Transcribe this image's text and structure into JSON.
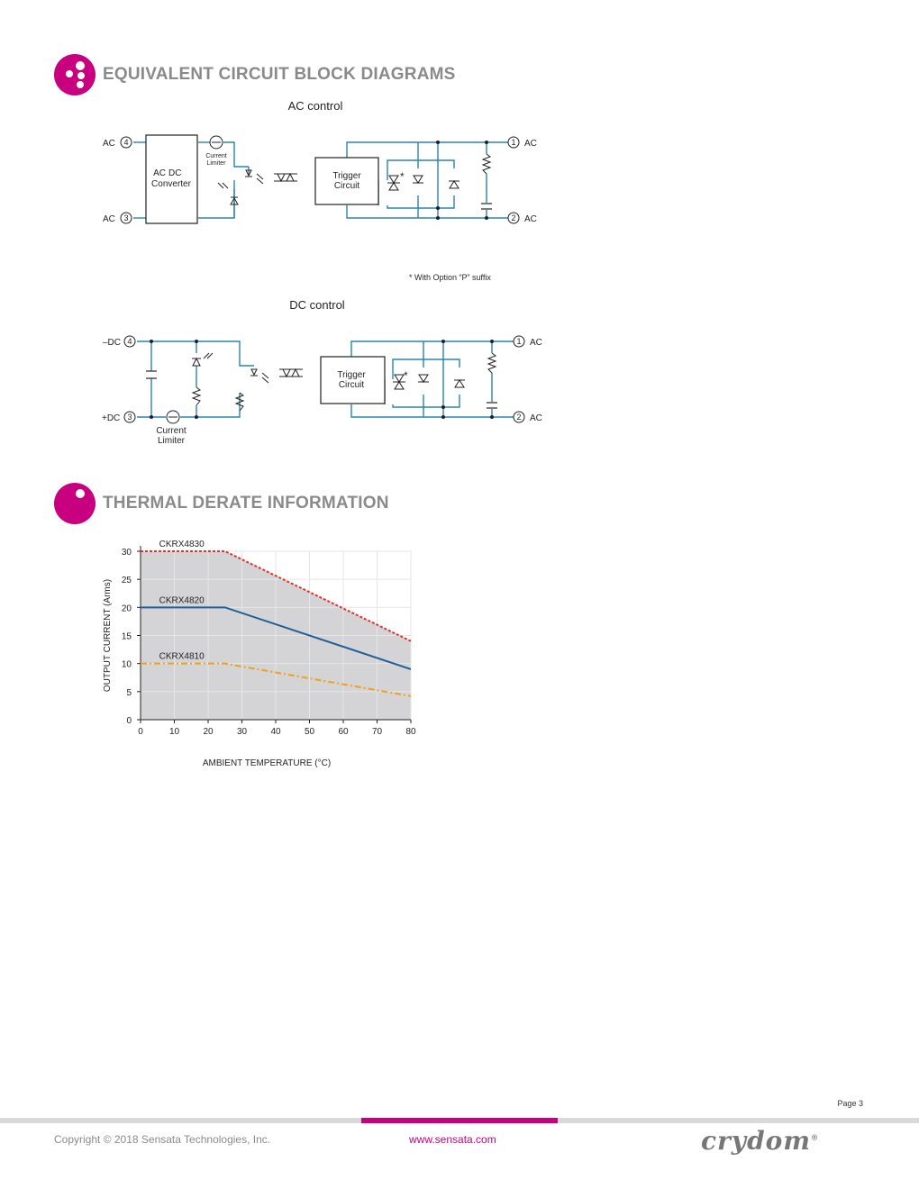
{
  "sections": {
    "circuit_title": "EQUIVALENT CIRCUIT BLOCK DIAGRAMS",
    "thermal_title": "THERMAL DERATE INFORMATION"
  },
  "ac_diagram": {
    "title": "AC control",
    "pin4_label": "AC",
    "pin3_label": "AC",
    "pin1_label": "AC",
    "pin2_label": "AC",
    "pin4": "4",
    "pin3": "3",
    "pin1": "1",
    "pin2": "2",
    "converter_line1": "AC",
    "converter_line2": "DC",
    "converter_line3": "Converter",
    "limiter_line1": "Current",
    "limiter_line2": "Limiter",
    "trigger_line1": "Trigger",
    "trigger_line2": "Circuit",
    "asterisk": "*",
    "footnote": "* With Option “P” suffix"
  },
  "dc_diagram": {
    "title": "DC control",
    "pin4_label": "–DC",
    "pin3_label": "+DC",
    "pin1_label": "AC",
    "pin2_label": "AC",
    "pin4": "4",
    "pin3": "3",
    "pin1": "1",
    "pin2": "2",
    "limiter_line1": "Current",
    "limiter_line2": "Limiter",
    "trigger_line1": "Trigger",
    "trigger_line2": "Circuit",
    "asterisk": "*"
  },
  "chart_data": {
    "type": "line",
    "xlabel": "AMBIENT TEMPERATURE (°C)",
    "ylabel": "OUTPUT CURRENT (Arms)",
    "xlim": [
      0,
      80
    ],
    "ylim": [
      0,
      30
    ],
    "xticks": [
      0,
      10,
      20,
      30,
      40,
      50,
      60,
      70,
      80
    ],
    "yticks": [
      0,
      5,
      10,
      15,
      20,
      25,
      30
    ],
    "grid": true,
    "series": [
      {
        "name": "CKRX4830",
        "color": "#e2302f",
        "dash": "dotted",
        "x": [
          0,
          25,
          80
        ],
        "y": [
          30,
          30,
          14
        ]
      },
      {
        "name": "CKRX4820",
        "color": "#1f5f95",
        "dash": "solid",
        "x": [
          0,
          25,
          80
        ],
        "y": [
          20,
          20,
          9
        ]
      },
      {
        "name": "CKRX4810",
        "color": "#f0a01c",
        "dash": "dashdot",
        "x": [
          0,
          25,
          80
        ],
        "y": [
          10,
          10,
          4.2
        ]
      }
    ]
  },
  "footer": {
    "page": "Page 3",
    "copyright": "Copyright © 2018 Sensata Technologies, Inc.",
    "website": "www.sensata.com",
    "logo": "crydom",
    "logo_mark": "®"
  },
  "colors": {
    "accent": "#c8007f",
    "wire": "#2a83b5",
    "heading": "#8a8a8a",
    "plot_fill": "#d4d4d6"
  }
}
